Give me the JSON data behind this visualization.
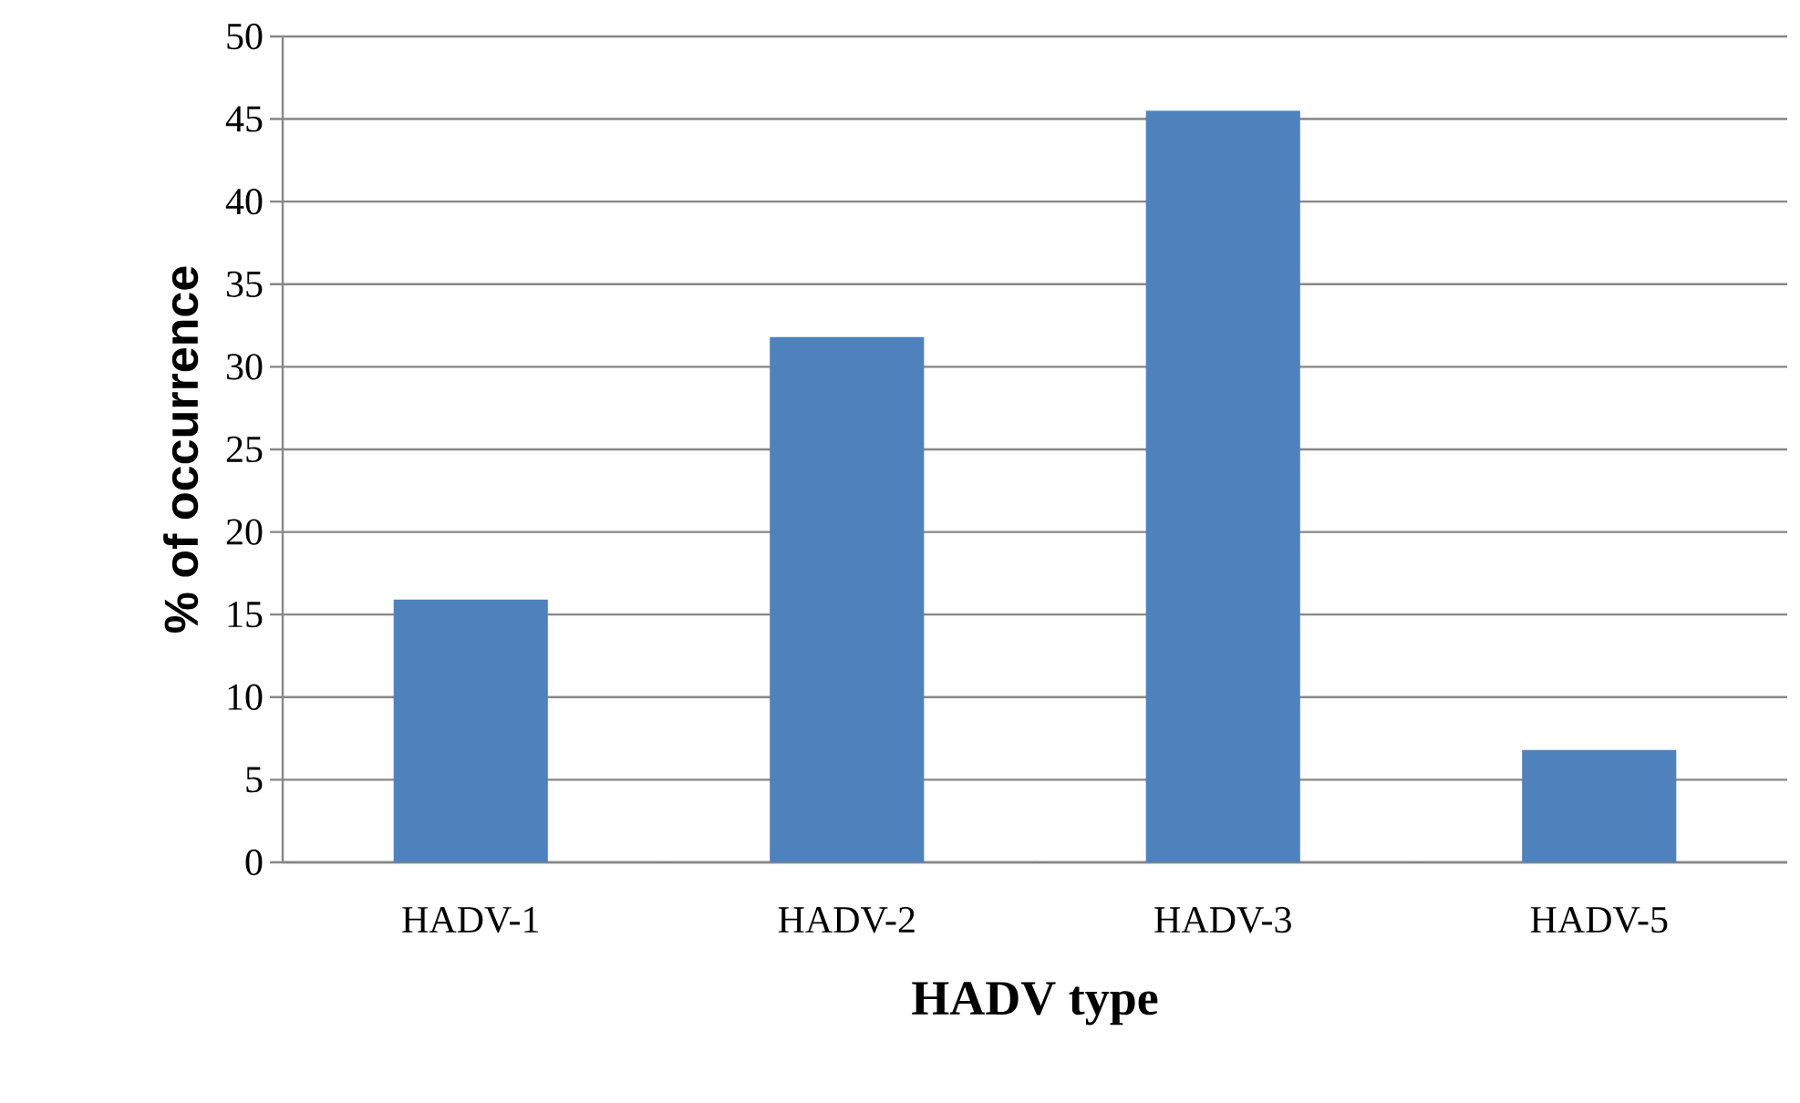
{
  "chart_data": {
    "type": "bar",
    "xlabel": "HADV type",
    "ylabel": "% of occurrence",
    "categories": [
      "HADV-1",
      "HADV-2",
      "HADV-3",
      "HADV-5"
    ],
    "values": [
      15.9,
      31.8,
      45.5,
      6.8
    ],
    "color": "#4f81bd",
    "ylim": [
      0,
      50
    ],
    "yticks": [
      0,
      5,
      10,
      15,
      20,
      25,
      30,
      35,
      40,
      45,
      50
    ],
    "grid": "y"
  }
}
